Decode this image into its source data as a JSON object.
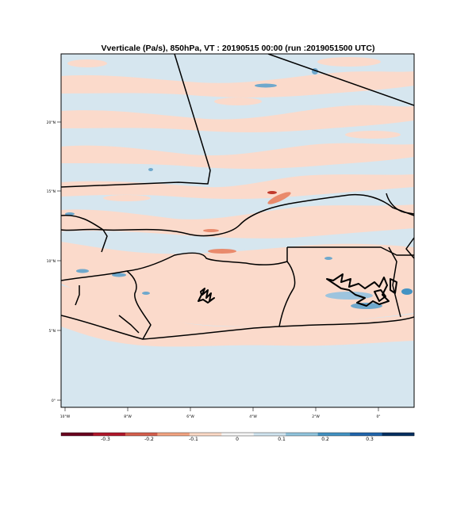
{
  "map": {
    "title": "Vverticale (Pa/s), 850hPa, VT : 20190515  00:00 (run :2019051500 UTC)",
    "lat_ticks": [
      "0°",
      "5°N",
      "10°N",
      "15°N",
      "20°N"
    ],
    "lon_ticks": [
      "10°W",
      "8°W",
      "6°W",
      "4°W",
      "2°W",
      "0°"
    ],
    "background_color": "#d6e6ef",
    "positive_color": "#fbdacb"
  },
  "colorbar": {
    "labels": [
      "-0.3",
      "-0.2",
      "-0.1",
      "0",
      "0.1",
      "0.2",
      "0.3"
    ],
    "colors": [
      "#6b0020",
      "#b2182b",
      "#d6604d",
      "#f4a582",
      "#fddbc7",
      "#f7f7f7",
      "#d1e5f0",
      "#92c5de",
      "#4393c3",
      "#2166ac",
      "#053061"
    ]
  }
}
